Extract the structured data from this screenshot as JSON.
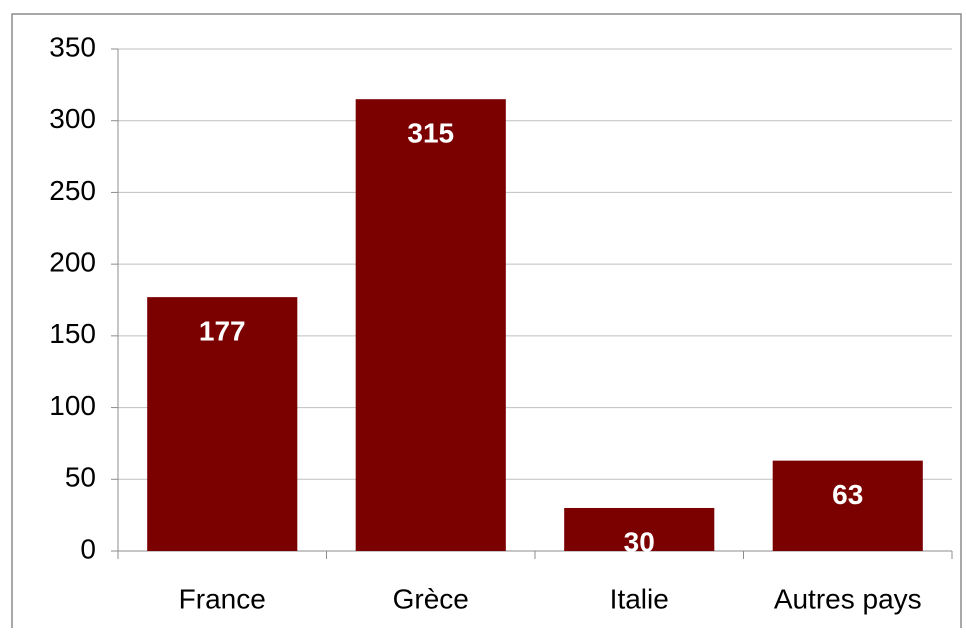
{
  "chart_data": {
    "type": "bar",
    "categories": [
      "France",
      "Grèce",
      "Italie",
      "Autres pays"
    ],
    "values": [
      177,
      315,
      30,
      63
    ],
    "color": "#7b0000",
    "ylim": [
      0,
      350
    ],
    "yticks": [
      0,
      50,
      100,
      150,
      200,
      250,
      300,
      350
    ],
    "grid": true
  }
}
